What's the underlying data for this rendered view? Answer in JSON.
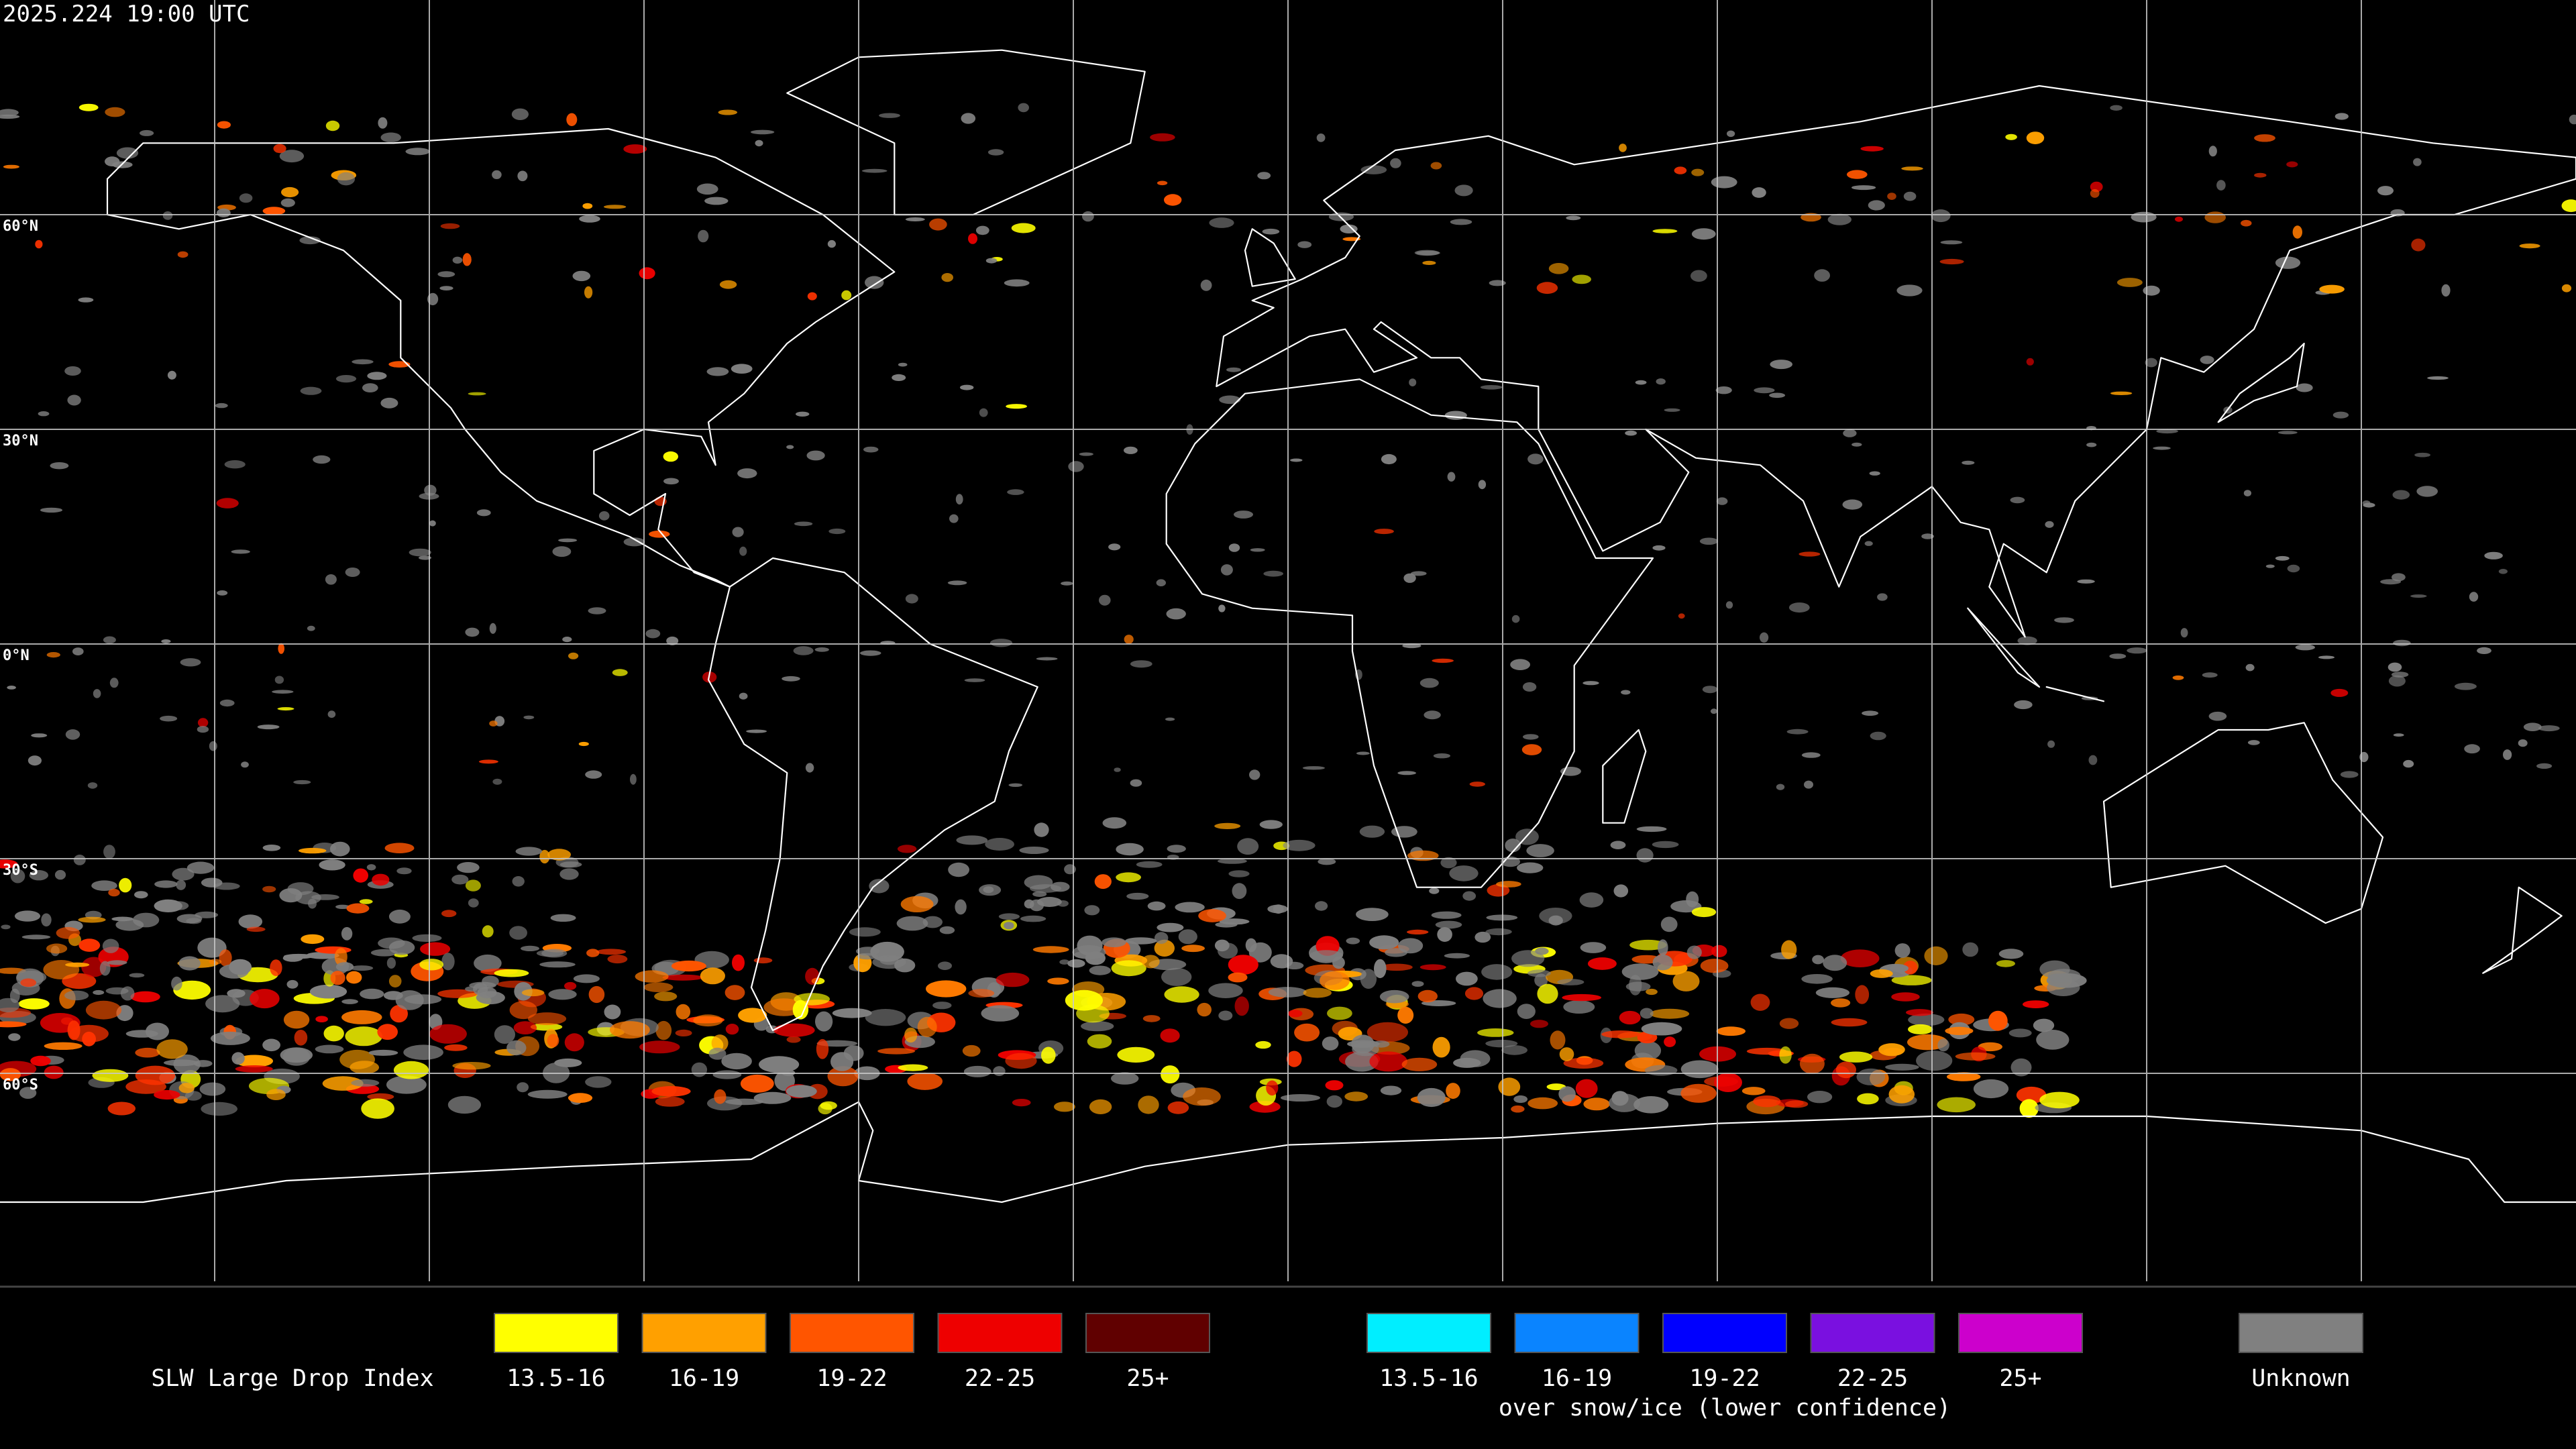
{
  "timestamp": "2025.224  19:00 UTC",
  "latitude_labels": [
    "60°N",
    "30°N",
    "0°N",
    "30°S",
    "60°S"
  ],
  "legend": {
    "title": "SLW Large Drop Index",
    "items": [
      {
        "label": "13.5-16",
        "color": "#ffff00"
      },
      {
        "label": "16-19",
        "color": "#ffa000"
      },
      {
        "label": "19-22",
        "color": "#ff5500"
      },
      {
        "label": "22-25",
        "color": "#ee0000"
      },
      {
        "label": "25+",
        "color": "#600000"
      }
    ],
    "snow_items": [
      {
        "label": "13.5-16",
        "color": "#00eeff"
      },
      {
        "label": "16-19",
        "color": "#0a84ff"
      },
      {
        "label": "19-22",
        "color": "#0000ff"
      },
      {
        "label": "22-25",
        "color": "#7a10e0"
      },
      {
        "label": "25+",
        "color": "#cc00cc"
      }
    ],
    "snow_caption": "over snow/ice (lower confidence)",
    "unknown": {
      "label": "Unknown",
      "color": "#808080"
    }
  }
}
